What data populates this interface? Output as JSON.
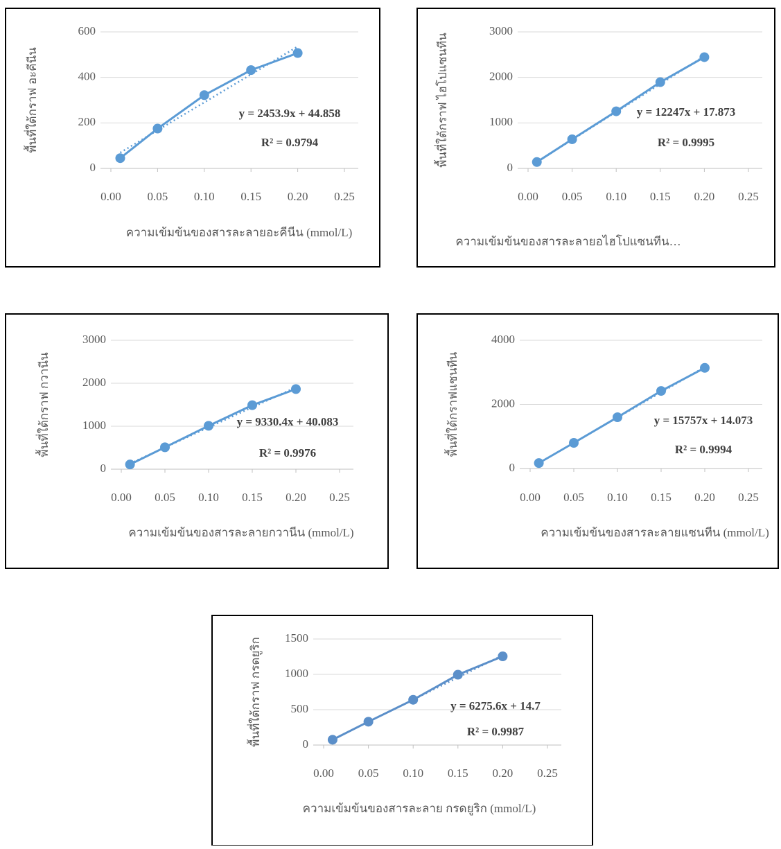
{
  "chart_data": [
    {
      "type": "line",
      "x": [
        0.01,
        0.05,
        0.1,
        0.15,
        0.2
      ],
      "values": [
        45,
        175,
        322,
        432,
        507
      ],
      "color": "#5b9bd5",
      "xlim": [
        0,
        0.25
      ],
      "xticks": [
        {
          "value": 0,
          "label": "0.00"
        },
        {
          "value": 0.05,
          "label": "0.05"
        },
        {
          "value": 0.1,
          "label": "0.10"
        },
        {
          "value": 0.15,
          "label": "0.15"
        },
        {
          "value": 0.2,
          "label": "0.20"
        },
        {
          "value": 0.25,
          "label": "0.25"
        }
      ],
      "ylim": [
        0,
        600
      ],
      "yticks": [
        0,
        200,
        400,
        600
      ],
      "grid": true,
      "x_label": "ความเข้มข้นของสารละลายอะคีนีน (mmol/L)",
      "y_label": "พื้นที่ใต้กราฟ อะคีนีน",
      "trendline": {
        "slope": 2453.9,
        "intercept": 44.858,
        "label": "y = 2453.9x + 44.858"
      },
      "r2_label": "R² = 0.9794"
    },
    {
      "type": "line",
      "x": [
        0.01,
        0.05,
        0.1,
        0.15,
        0.2
      ],
      "values": [
        140,
        640,
        1255,
        1895,
        2445
      ],
      "color": "#5b9bd5",
      "xlim": [
        0,
        0.25
      ],
      "xticks": [
        {
          "value": 0,
          "label": "0.00"
        },
        {
          "value": 0.05,
          "label": "0.05"
        },
        {
          "value": 0.1,
          "label": "0.10"
        },
        {
          "value": 0.15,
          "label": "0.15"
        },
        {
          "value": 0.2,
          "label": "0.20"
        },
        {
          "value": 0.25,
          "label": "0.25"
        }
      ],
      "ylim": [
        0,
        3000
      ],
      "yticks": [
        0,
        1000,
        2000,
        3000
      ],
      "grid": true,
      "x_label": "ความเข้มข้นของสารละลายอไฮโปแซนทีน…",
      "y_label": "พื้นที่ใต้กราฟ ไฮโปแซนทีน",
      "trendline": {
        "slope": 12247,
        "intercept": 17.873,
        "label": "y = 12247x + 17.873"
      },
      "r2_label": "R² = 0.9995"
    },
    {
      "type": "line",
      "x": [
        0.01,
        0.05,
        0.1,
        0.15,
        0.2
      ],
      "values": [
        110,
        510,
        1010,
        1490,
        1865
      ],
      "color": "#5b9bd5",
      "xlim": [
        0,
        0.25
      ],
      "xticks": [
        {
          "value": 0,
          "label": "0.00"
        },
        {
          "value": 0.05,
          "label": "0.05"
        },
        {
          "value": 0.1,
          "label": "0.10"
        },
        {
          "value": 0.15,
          "label": "0.15"
        },
        {
          "value": 0.2,
          "label": "0.20"
        },
        {
          "value": 0.25,
          "label": "0.25"
        }
      ],
      "ylim": [
        0,
        3000
      ],
      "yticks": [
        0,
        1000,
        2000,
        3000
      ],
      "grid": true,
      "x_label": "ความเข้มข้นของสารละลายกวานีน (mmol/L)",
      "y_label": "พื้นที่ใต้กราฟ กวานีน",
      "trendline": {
        "slope": 9330.4,
        "intercept": 40.083,
        "label": "y = 9330.4x + 40.083"
      },
      "r2_label": "R² = 0.9976"
    },
    {
      "type": "line",
      "x": [
        0.01,
        0.05,
        0.1,
        0.15,
        0.2
      ],
      "values": [
        170,
        800,
        1600,
        2420,
        3140
      ],
      "color": "#5b9bd5",
      "xlim": [
        0,
        0.25
      ],
      "xticks": [
        {
          "value": 0,
          "label": "0.00"
        },
        {
          "value": 0.05,
          "label": "0.05"
        },
        {
          "value": 0.1,
          "label": "0.10"
        },
        {
          "value": 0.15,
          "label": "0.15"
        },
        {
          "value": 0.2,
          "label": "0.20"
        },
        {
          "value": 0.25,
          "label": "0.25"
        }
      ],
      "ylim": [
        0,
        4000
      ],
      "yticks": [
        0,
        2000,
        4000
      ],
      "grid": true,
      "x_label": "ความเข้มข้นของสารละลายแซนทีน (mmol/L)",
      "y_label": "พื้นที่ใต้กราฟแซนทีน",
      "trendline": {
        "slope": 15757,
        "intercept": 14.073,
        "label": "y = 15757x + 14.073"
      },
      "r2_label": "R² = 0.9994"
    },
    {
      "type": "line",
      "x": [
        0.01,
        0.05,
        0.1,
        0.15,
        0.2
      ],
      "values": [
        75,
        330,
        640,
        995,
        1255
      ],
      "color": "#5b8fc9",
      "xlim": [
        0,
        0.25
      ],
      "xticks": [
        {
          "value": 0,
          "label": "0.00"
        },
        {
          "value": 0.05,
          "label": "0.05"
        },
        {
          "value": 0.1,
          "label": "0.10"
        },
        {
          "value": 0.15,
          "label": "0.15"
        },
        {
          "value": 0.2,
          "label": "0.20"
        },
        {
          "value": 0.25,
          "label": "0.25"
        }
      ],
      "ylim": [
        0,
        1500
      ],
      "yticks": [
        0,
        500,
        1000,
        1500
      ],
      "grid": true,
      "x_label": "ความเข้มข้นของสารละลาย กรดยูริก (mmol/L)",
      "y_label": "พื้นที่ใต้กราฟ กรดยูริก",
      "trendline": {
        "slope": 6275.6,
        "intercept": 14.7,
        "label": "y = 6275.6x + 14.7"
      },
      "r2_label": "R² = 0.9987"
    }
  ]
}
